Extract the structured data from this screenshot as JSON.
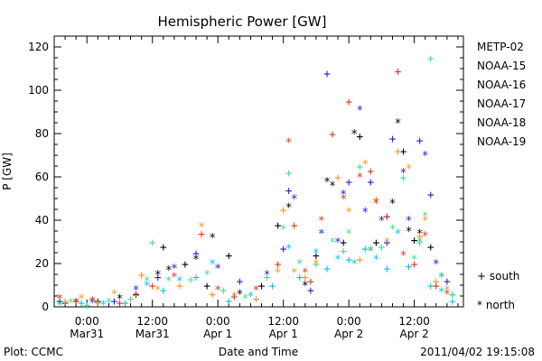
{
  "chart_data": {
    "type": "scatter",
    "title": "Hemispheric Power [GW]",
    "ylabel": "P [GW]",
    "xlabel": "Date and Time",
    "ylim": [
      0,
      125
    ],
    "yticks": [
      0,
      20,
      40,
      60,
      80,
      100,
      120
    ],
    "xlim": [
      -6,
      69
    ],
    "x_unit": "hours since 2011-03-31 00:00",
    "xticks": [
      {
        "x": 0,
        "line1": "0:00",
        "line2": "Mar31"
      },
      {
        "x": 12,
        "line1": "12:00",
        "line2": "Mar31"
      },
      {
        "x": 24,
        "line1": "0:00",
        "line2": "Apr 1"
      },
      {
        "x": 36,
        "line1": "12:00",
        "line2": "Apr 1"
      },
      {
        "x": 48,
        "line1": "0:00",
        "line2": "Apr 2"
      },
      {
        "x": 60,
        "line1": "12:00",
        "line2": "Apr 2"
      }
    ],
    "footer_left": "Plot: CCMC",
    "footer_right": "2011/04/02 19:15:08",
    "legend_symbols": {
      "south": "+ south",
      "north": "* north"
    },
    "series": [
      {
        "name": "METP-02",
        "color": "#000000",
        "points": [
          [
            -5,
            3,
            "+"
          ],
          [
            -2,
            2,
            "*"
          ],
          [
            2,
            3,
            "+"
          ],
          [
            6,
            4,
            "*"
          ],
          [
            9,
            6,
            "+"
          ],
          [
            13,
            15,
            "*"
          ],
          [
            14,
            28,
            "+"
          ],
          [
            15,
            17,
            "*"
          ],
          [
            18,
            20,
            "+"
          ],
          [
            20,
            22,
            "*"
          ],
          [
            22,
            10,
            "+"
          ],
          [
            23,
            32,
            "*"
          ],
          [
            26,
            24,
            "+"
          ],
          [
            28,
            6,
            "*"
          ],
          [
            32,
            10,
            "+"
          ],
          [
            35,
            38,
            "+"
          ],
          [
            37,
            46,
            "*"
          ],
          [
            40,
            10,
            "*"
          ],
          [
            42,
            24,
            "+"
          ],
          [
            44,
            58,
            "*"
          ],
          [
            45,
            56,
            "*"
          ],
          [
            47,
            30,
            "+"
          ],
          [
            49,
            80,
            "*"
          ],
          [
            50,
            79,
            "+"
          ],
          [
            52,
            26,
            "*"
          ],
          [
            53,
            30,
            "+"
          ],
          [
            55,
            42,
            "+"
          ],
          [
            56,
            48,
            "*"
          ],
          [
            57,
            85,
            "*"
          ],
          [
            58,
            72,
            "+"
          ],
          [
            59,
            35,
            "*"
          ],
          [
            60,
            31,
            "+"
          ],
          [
            61,
            34,
            "*"
          ],
          [
            63,
            28,
            "+"
          ],
          [
            65,
            14,
            "*"
          ],
          [
            67,
            6,
            "+"
          ]
        ]
      },
      {
        "name": "NOAA-15",
        "color": "#1a1ae0",
        "points": [
          [
            -4,
            2,
            "+"
          ],
          [
            1,
            2,
            "*"
          ],
          [
            5,
            3,
            "+"
          ],
          [
            9,
            8,
            "*"
          ],
          [
            13,
            14,
            "+"
          ],
          [
            16,
            18,
            "*"
          ],
          [
            20,
            25,
            "+"
          ],
          [
            24,
            18,
            "*"
          ],
          [
            28,
            12,
            "+"
          ],
          [
            33,
            15,
            "*"
          ],
          [
            36,
            27,
            "+"
          ],
          [
            37,
            54,
            "+"
          ],
          [
            38,
            50,
            "*"
          ],
          [
            41,
            8,
            "+"
          ],
          [
            43,
            34,
            "*"
          ],
          [
            44,
            108,
            "+"
          ],
          [
            46,
            30,
            "*"
          ],
          [
            47,
            52,
            "*"
          ],
          [
            48,
            58,
            "+"
          ],
          [
            50,
            91,
            "*"
          ],
          [
            51,
            44,
            "*"
          ],
          [
            52,
            58,
            "+"
          ],
          [
            54,
            40,
            "*"
          ],
          [
            55,
            30,
            "+"
          ],
          [
            56,
            78,
            "+"
          ],
          [
            58,
            62,
            "*"
          ],
          [
            59,
            40,
            "*"
          ],
          [
            61,
            77,
            "+"
          ],
          [
            62,
            70,
            "*"
          ],
          [
            63,
            52,
            "+"
          ],
          [
            64,
            20,
            "*"
          ],
          [
            66,
            12,
            "+"
          ]
        ]
      },
      {
        "name": "NOAA-16",
        "color": "#00c8e6",
        "points": [
          [
            -5,
            1,
            "*"
          ],
          [
            -1,
            2,
            "+"
          ],
          [
            3,
            1,
            "*"
          ],
          [
            7,
            2,
            "+"
          ],
          [
            11,
            10,
            "*"
          ],
          [
            14,
            8,
            "+"
          ],
          [
            17,
            12,
            "*"
          ],
          [
            20,
            14,
            "+"
          ],
          [
            23,
            20,
            "*"
          ],
          [
            26,
            3,
            "+"
          ],
          [
            30,
            5,
            "*"
          ],
          [
            34,
            10,
            "+"
          ],
          [
            37,
            27,
            "*"
          ],
          [
            39,
            14,
            "+"
          ],
          [
            42,
            25,
            "*"
          ],
          [
            44,
            18,
            "+"
          ],
          [
            46,
            22,
            "*"
          ],
          [
            48,
            22,
            "+"
          ],
          [
            49,
            20,
            "*"
          ],
          [
            51,
            27,
            "+"
          ],
          [
            53,
            22,
            "*"
          ],
          [
            55,
            18,
            "+"
          ],
          [
            57,
            34,
            "*"
          ],
          [
            59,
            19,
            "+"
          ],
          [
            61,
            30,
            "*"
          ],
          [
            63,
            10,
            "+"
          ],
          [
            65,
            7,
            "*"
          ],
          [
            67,
            3,
            "+"
          ]
        ]
      },
      {
        "name": "NOAA-17",
        "color": "#3ce08c",
        "points": [
          [
            -3,
            2,
            "*"
          ],
          [
            0,
            1,
            "+"
          ],
          [
            4,
            2,
            "*"
          ],
          [
            8,
            4,
            "+"
          ],
          [
            11,
            12,
            "*"
          ],
          [
            12,
            30,
            "+"
          ],
          [
            15,
            12,
            "*"
          ],
          [
            19,
            13,
            "+"
          ],
          [
            22,
            15,
            "*"
          ],
          [
            25,
            8,
            "+"
          ],
          [
            29,
            4,
            "*"
          ],
          [
            33,
            14,
            "+"
          ],
          [
            36,
            36,
            "*"
          ],
          [
            37,
            62,
            "+"
          ],
          [
            39,
            20,
            "*"
          ],
          [
            42,
            20,
            "+"
          ],
          [
            45,
            30,
            "*"
          ],
          [
            47,
            26,
            "+"
          ],
          [
            48,
            34,
            "*"
          ],
          [
            50,
            65,
            "+"
          ],
          [
            52,
            26,
            "*"
          ],
          [
            54,
            28,
            "+"
          ],
          [
            56,
            36,
            "*"
          ],
          [
            58,
            60,
            "+"
          ],
          [
            60,
            22,
            "*"
          ],
          [
            61,
            30,
            "+"
          ],
          [
            62,
            42,
            "*"
          ],
          [
            63,
            115,
            "+"
          ],
          [
            65,
            14,
            "*"
          ],
          [
            67,
            6,
            "+"
          ]
        ]
      },
      {
        "name": "NOAA-18",
        "color": "#f0961e",
        "points": [
          [
            -4,
            3,
            "+"
          ],
          [
            -1,
            4,
            "*"
          ],
          [
            2,
            2,
            "+"
          ],
          [
            5,
            6,
            "*"
          ],
          [
            10,
            15,
            "+"
          ],
          [
            13,
            8,
            "*"
          ],
          [
            17,
            10,
            "+"
          ],
          [
            21,
            37,
            "*"
          ],
          [
            23,
            6,
            "+"
          ],
          [
            27,
            5,
            "*"
          ],
          [
            31,
            4,
            "+"
          ],
          [
            35,
            16,
            "*"
          ],
          [
            36,
            45,
            "+"
          ],
          [
            38,
            16,
            "*"
          ],
          [
            40,
            14,
            "+"
          ],
          [
            42,
            20,
            "*"
          ],
          [
            46,
            60,
            "+"
          ],
          [
            48,
            44,
            "*"
          ],
          [
            50,
            22,
            "+"
          ],
          [
            51,
            66,
            "*"
          ],
          [
            53,
            50,
            "+"
          ],
          [
            55,
            30,
            "*"
          ],
          [
            57,
            72,
            "+"
          ],
          [
            59,
            64,
            "*"
          ],
          [
            61,
            33,
            "+"
          ],
          [
            62,
            40,
            "*"
          ],
          [
            64,
            12,
            "+"
          ],
          [
            66,
            8,
            "*"
          ]
        ]
      },
      {
        "name": "NOAA-19",
        "color": "#e0321e",
        "points": [
          [
            -5,
            4,
            "*"
          ],
          [
            -2,
            3,
            "+"
          ],
          [
            1,
            3,
            "*"
          ],
          [
            6,
            2,
            "+"
          ],
          [
            9,
            5,
            "*"
          ],
          [
            12,
            10,
            "+"
          ],
          [
            16,
            14,
            "*"
          ],
          [
            21,
            34,
            "+"
          ],
          [
            24,
            8,
            "*"
          ],
          [
            27,
            5,
            "+"
          ],
          [
            31,
            8,
            "*"
          ],
          [
            35,
            20,
            "+"
          ],
          [
            37,
            76,
            "*"
          ],
          [
            38,
            38,
            "+"
          ],
          [
            40,
            16,
            "*"
          ],
          [
            41,
            12,
            "+"
          ],
          [
            43,
            40,
            "*"
          ],
          [
            45,
            80,
            "+"
          ],
          [
            47,
            50,
            "*"
          ],
          [
            48,
            95,
            "+"
          ],
          [
            50,
            60,
            "*"
          ],
          [
            52,
            63,
            "+"
          ],
          [
            53,
            48,
            "*"
          ],
          [
            55,
            42,
            "+"
          ],
          [
            57,
            109,
            "+"
          ],
          [
            58,
            24,
            "*"
          ],
          [
            60,
            20,
            "+"
          ],
          [
            62,
            33,
            "*"
          ],
          [
            64,
            10,
            "+"
          ],
          [
            66,
            6,
            "*"
          ]
        ]
      }
    ]
  }
}
